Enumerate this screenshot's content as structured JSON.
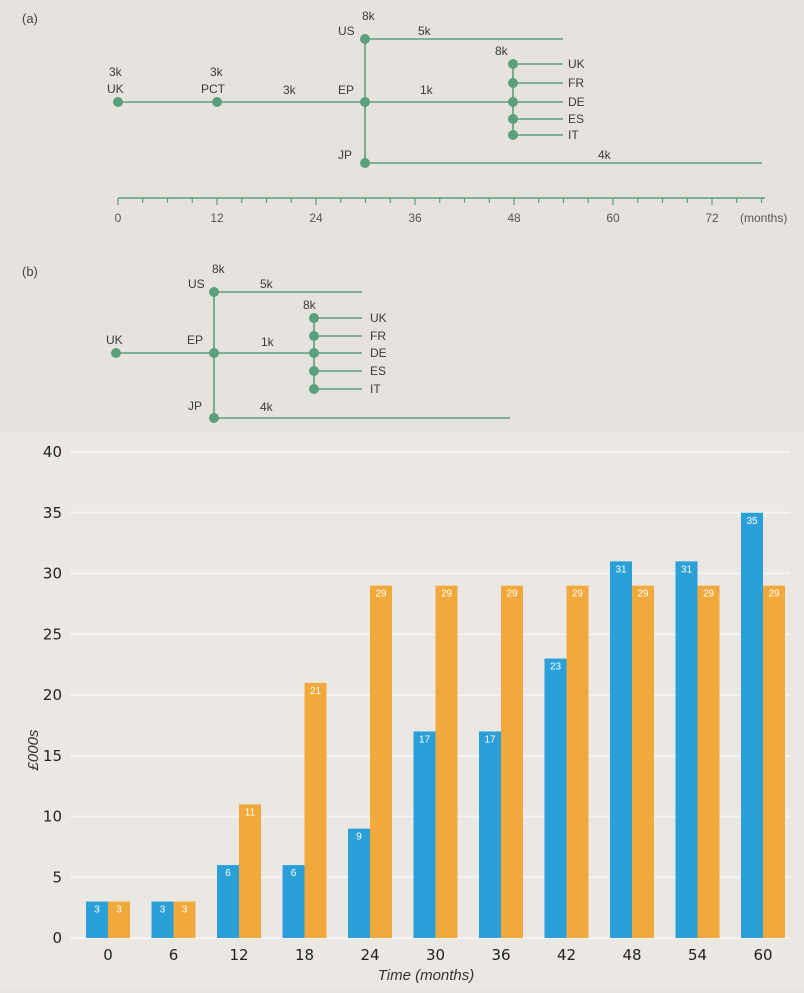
{
  "diagram_a": {
    "panel_label": "(a)",
    "nodes": {
      "uk": {
        "label": "UK",
        "value": "3k"
      },
      "pct": {
        "label": "PCT",
        "value": "3k"
      },
      "us": {
        "label": "US",
        "value": "8k"
      },
      "ep": {
        "label": "EP"
      },
      "jp": {
        "label": "JP"
      },
      "group_value": "8k"
    },
    "segment_labels": {
      "pct_ep": "3k",
      "us_line": "5k",
      "ep_line": "1k",
      "jp_line": "4k"
    },
    "countries": [
      "UK",
      "FR",
      "DE",
      "ES",
      "IT"
    ],
    "timeline": {
      "ticks": [
        "0",
        "12",
        "24",
        "36",
        "48",
        "60",
        "72"
      ],
      "unit": "(months)"
    }
  },
  "diagram_b": {
    "panel_label": "(b)",
    "nodes": {
      "uk": {
        "label": "UK"
      },
      "us": {
        "label": "US",
        "value": "8k"
      },
      "ep": {
        "label": "EP"
      },
      "jp": {
        "label": "JP"
      },
      "group_value": "8k"
    },
    "segment_labels": {
      "us_line": "5k",
      "ep_line": "1k",
      "jp_line": "4k"
    },
    "countries": [
      "UK",
      "FR",
      "DE",
      "ES",
      "IT"
    ]
  },
  "colors": {
    "diagram_green": "#5aa07c",
    "series_a": "#2a9fd8",
    "series_b": "#f0a93a"
  },
  "chart_data": {
    "type": "bar",
    "categories": [
      "0",
      "6",
      "12",
      "18",
      "24",
      "30",
      "36",
      "42",
      "48",
      "54",
      "60"
    ],
    "series": [
      {
        "values": [
          3,
          3,
          6,
          6,
          9,
          17,
          17,
          23,
          31,
          31,
          35
        ]
      },
      {
        "values": [
          3,
          3,
          11,
          21,
          29,
          29,
          29,
          29,
          29,
          29,
          29
        ]
      }
    ],
    "ylabel": "£000s",
    "xlabel": "Time (months)",
    "ylim": [
      0,
      40
    ],
    "yticks": [
      0,
      5,
      10,
      15,
      20,
      25,
      30,
      35,
      40
    ],
    "grid": true
  }
}
